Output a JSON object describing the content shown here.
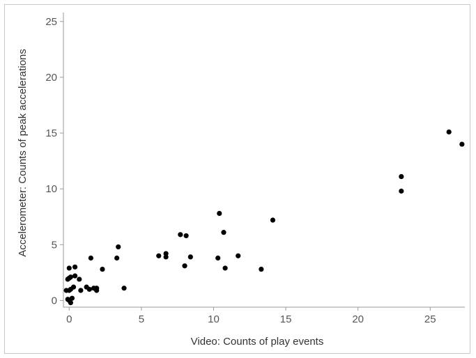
{
  "chart_data": {
    "type": "scatter",
    "title": "",
    "xlabel": "Video: Counts of play events",
    "ylabel": "Accelerometer: Counts of peak accelerations",
    "xlim": [
      -0.4,
      27.4
    ],
    "ylim": [
      -0.6,
      25.8
    ],
    "xticks": [
      0,
      5,
      10,
      15,
      20,
      25
    ],
    "yticks": [
      0,
      5,
      10,
      15,
      20,
      25
    ],
    "grid": false,
    "legend": "none",
    "marker_color": "#000000",
    "points": [
      {
        "x": -0.2,
        "y": 0.9
      },
      {
        "x": -0.1,
        "y": 0.1
      },
      {
        "x": 0.0,
        "y": 0.0
      },
      {
        "x": 0.1,
        "y": -0.2
      },
      {
        "x": 0.2,
        "y": 0.2
      },
      {
        "x": 0.0,
        "y": 0.9
      },
      {
        "x": 0.1,
        "y": 1.0
      },
      {
        "x": 0.3,
        "y": 1.2
      },
      {
        "x": -0.1,
        "y": 1.9
      },
      {
        "x": 0.0,
        "y": 2.0
      },
      {
        "x": 0.1,
        "y": 2.1
      },
      {
        "x": 0.0,
        "y": 2.9
      },
      {
        "x": 0.4,
        "y": 2.2
      },
      {
        "x": 0.4,
        "y": 3.0
      },
      {
        "x": 0.7,
        "y": 1.9
      },
      {
        "x": 0.8,
        "y": 0.9
      },
      {
        "x": 1.2,
        "y": 1.2
      },
      {
        "x": 1.4,
        "y": 1.0
      },
      {
        "x": 1.5,
        "y": 3.8
      },
      {
        "x": 1.7,
        "y": 1.1
      },
      {
        "x": 1.9,
        "y": 0.9
      },
      {
        "x": 1.9,
        "y": 1.1
      },
      {
        "x": 2.3,
        "y": 2.8
      },
      {
        "x": 3.3,
        "y": 3.8
      },
      {
        "x": 3.4,
        "y": 4.8
      },
      {
        "x": 3.8,
        "y": 1.1
      },
      {
        "x": 6.2,
        "y": 4.0
      },
      {
        "x": 6.7,
        "y": 4.2
      },
      {
        "x": 6.7,
        "y": 3.9
      },
      {
        "x": 7.7,
        "y": 5.9
      },
      {
        "x": 8.0,
        "y": 3.1
      },
      {
        "x": 8.1,
        "y": 5.8
      },
      {
        "x": 8.4,
        "y": 3.9
      },
      {
        "x": 10.3,
        "y": 3.8
      },
      {
        "x": 10.4,
        "y": 7.8
      },
      {
        "x": 10.7,
        "y": 6.1
      },
      {
        "x": 10.8,
        "y": 2.9
      },
      {
        "x": 11.7,
        "y": 4.0
      },
      {
        "x": 13.3,
        "y": 2.8
      },
      {
        "x": 14.1,
        "y": 7.2
      },
      {
        "x": 23.0,
        "y": 11.1
      },
      {
        "x": 23.0,
        "y": 9.8
      },
      {
        "x": 26.3,
        "y": 15.1
      },
      {
        "x": 27.2,
        "y": 14.0
      }
    ]
  }
}
